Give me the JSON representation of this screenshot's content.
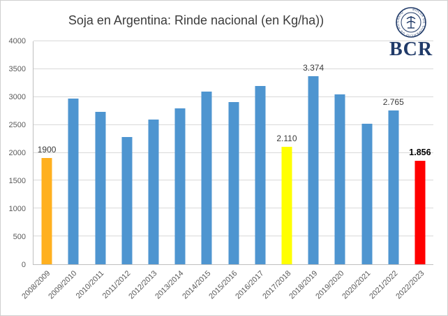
{
  "title": "Soja en Argentina: Rinde nacional (en Kg/ha))",
  "logo": {
    "seal_text": "BOLSA DE COMERCIO DE ROSARIO",
    "wordmark": "BCR",
    "color": "#203a68"
  },
  "chart_data": {
    "type": "bar",
    "title": "Soja en Argentina: Rinde nacional (en Kg/ha))",
    "xlabel": "",
    "ylabel": "",
    "ylim": [
      0,
      4000
    ],
    "ytick_interval": 500,
    "grid": true,
    "legend": "none",
    "categories": [
      "2008/2009",
      "2009/2010",
      "2010/2011",
      "2011/2012",
      "2012/2013",
      "2013/2014",
      "2014/2015",
      "2015/2016",
      "2016/2017",
      "2017/2018",
      "2018/2019",
      "2019/2020",
      "2020/2021",
      "2021/2022",
      "2022/2023"
    ],
    "values": [
      1900,
      2975,
      2730,
      2280,
      2590,
      2800,
      3100,
      2910,
      3200,
      2110,
      3374,
      3050,
      2520,
      2765,
      1856
    ],
    "bar_colors": [
      "#FFB01F",
      "#4E95D0",
      "#4E95D0",
      "#4E95D0",
      "#4E95D0",
      "#4E95D0",
      "#4E95D0",
      "#4E95D0",
      "#4E95D0",
      "#FFFF00",
      "#4E95D0",
      "#4E95D0",
      "#4E95D0",
      "#4E95D0",
      "#FF0000"
    ],
    "data_labels": [
      {
        "index": 0,
        "text": "1900",
        "bold": false
      },
      {
        "index": 9,
        "text": "2.110",
        "bold": false
      },
      {
        "index": 10,
        "text": "3.374",
        "bold": false
      },
      {
        "index": 13,
        "text": "2.765",
        "bold": false
      },
      {
        "index": 14,
        "text": "1.856",
        "bold": true
      }
    ]
  }
}
